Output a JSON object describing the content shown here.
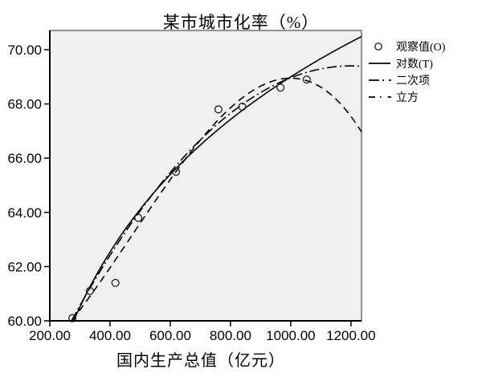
{
  "title": "某市城市化率（%）",
  "x_axis": {
    "title": "国内生产总值（亿元）",
    "min": 200,
    "max": 1235,
    "ticks": [
      {
        "v": 200,
        "label": "200.00"
      },
      {
        "v": 400,
        "label": "400.00"
      },
      {
        "v": 600,
        "label": "600.00"
      },
      {
        "v": 800,
        "label": "800.00"
      },
      {
        "v": 1000,
        "label": "1000.00"
      },
      {
        "v": 1200,
        "label": "1200.00"
      }
    ]
  },
  "y_axis": {
    "min": 60,
    "max": 70.71,
    "ticks": [
      {
        "v": 60,
        "label": "60.00"
      },
      {
        "v": 62,
        "label": "62.00"
      },
      {
        "v": 64,
        "label": "64.00"
      },
      {
        "v": 66,
        "label": "66.00"
      },
      {
        "v": 68,
        "label": "68.00"
      },
      {
        "v": 70,
        "label": "70.00"
      }
    ]
  },
  "chart_data": {
    "type": "scatter",
    "title": "某市城市化率（%）",
    "xlabel": "国内生产总值（亿元）",
    "ylabel": "",
    "xlim": [
      200,
      1235
    ],
    "ylim": [
      60,
      70.71
    ],
    "grid": false,
    "legend_position": "top-right-outside",
    "observed": {
      "label": "观察值(O)",
      "points": [
        [
          275,
          60.1
        ],
        [
          333,
          61.1
        ],
        [
          418,
          61.4
        ],
        [
          494,
          63.8
        ],
        [
          619,
          65.5
        ],
        [
          760,
          67.8
        ],
        [
          839,
          67.9
        ],
        [
          966,
          68.6
        ],
        [
          1053,
          68.9
        ]
      ]
    },
    "series": [
      {
        "name": "对数(T)",
        "model": "logarithmic",
        "style": "solid",
        "params": {
          "a": 20.3,
          "b": 7.05
        }
      },
      {
        "name": "二次项",
        "model": "quadratic",
        "style": "dashdot",
        "params": {
          "a": 53.685,
          "b": 0.026196,
          "c": -1.0915e-05
        }
      },
      {
        "name": "立方",
        "model": "cubic",
        "style": "dash",
        "params": {
          "a": 57.449,
          "b": 0.0032,
          "c": 2.8106e-05,
          "d": -1.9804e-08
        }
      }
    ],
    "colors": {
      "line": "#000000",
      "marker": "#2a2a2a",
      "plot_bg": "#f0f0f0",
      "frame": "#7a7a7a",
      "axis": "#000000",
      "text": "#000000"
    }
  }
}
